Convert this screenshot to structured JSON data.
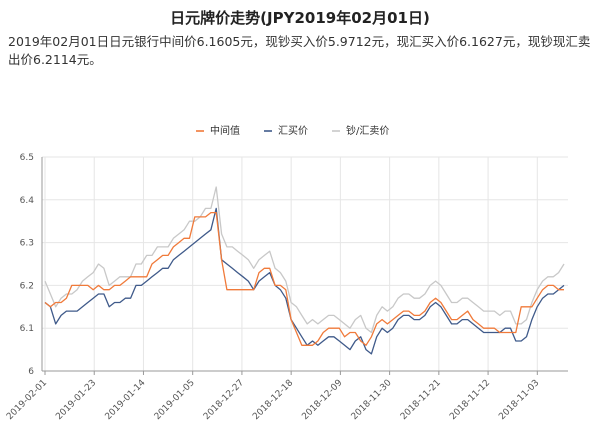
{
  "header": {
    "title": "日元牌价走势(JPY2019年02月01日)",
    "description": "2019年02月01日日元银行中间价6.1605元，现钞买入价5.9712元，现汇买入价6.1627元，现钞现汇卖出价6.2114元。"
  },
  "colors": {
    "mid": "#f07a3a",
    "buy": "#3f5a8a",
    "sell": "#c8c8c8",
    "grid": "#e6e6e6",
    "axis": "#999999"
  },
  "chart_data": {
    "type": "line",
    "title": "",
    "xlabel": "",
    "ylabel": "",
    "ylim": [
      6,
      6.5
    ],
    "yticks": [
      "6",
      "6.1",
      "6.2",
      "6.3",
      "6.4",
      "6.5"
    ],
    "xticks": [
      "2019-02-01",
      "2019-01-23",
      "2019-01-14",
      "2019-01-05",
      "2018-12-27",
      "2018-12-18",
      "2018-12-09",
      "2018-11-30",
      "2018-11-21",
      "2018-11-12",
      "2018-11-03"
    ],
    "grid": true,
    "legend_position": "top-center",
    "series": [
      {
        "name": "中间值",
        "values": [
          6.16,
          6.15,
          6.16,
          6.16,
          6.17,
          6.2,
          6.2,
          6.2,
          6.2,
          6.19,
          6.2,
          6.19,
          6.19,
          6.2,
          6.2,
          6.21,
          6.22,
          6.22,
          6.22,
          6.22,
          6.25,
          6.26,
          6.27,
          6.27,
          6.29,
          6.3,
          6.31,
          6.31,
          6.36,
          6.36,
          6.36,
          6.37,
          6.37,
          6.26,
          6.19,
          6.19,
          6.19,
          6.19,
          6.19,
          6.19,
          6.23,
          6.24,
          6.24,
          6.2,
          6.2,
          6.19,
          6.12,
          6.09,
          6.06,
          6.06,
          6.06,
          6.07,
          6.09,
          6.1,
          6.1,
          6.1,
          6.08,
          6.09,
          6.09,
          6.07,
          6.06,
          6.08,
          6.11,
          6.12,
          6.11,
          6.12,
          6.13,
          6.14,
          6.14,
          6.13,
          6.13,
          6.14,
          6.16,
          6.17,
          6.16,
          6.14,
          6.12,
          6.12,
          6.13,
          6.14,
          6.12,
          6.11,
          6.1,
          6.1,
          6.1,
          6.09,
          6.09,
          6.09,
          6.09,
          6.15,
          6.15,
          6.15,
          6.17,
          6.19,
          6.2,
          6.2,
          6.19,
          6.19
        ]
      },
      {
        "name": "汇买价",
        "values": [
          6.16,
          6.15,
          6.11,
          6.13,
          6.14,
          6.14,
          6.14,
          6.15,
          6.16,
          6.17,
          6.18,
          6.18,
          6.15,
          6.16,
          6.16,
          6.17,
          6.17,
          6.2,
          6.2,
          6.21,
          6.22,
          6.23,
          6.24,
          6.24,
          6.26,
          6.27,
          6.28,
          6.29,
          6.3,
          6.31,
          6.32,
          6.33,
          6.38,
          6.26,
          6.25,
          6.24,
          6.23,
          6.22,
          6.21,
          6.19,
          6.21,
          6.22,
          6.23,
          6.2,
          6.19,
          6.17,
          6.12,
          6.1,
          6.08,
          6.06,
          6.07,
          6.06,
          6.07,
          6.08,
          6.08,
          6.07,
          6.06,
          6.05,
          6.07,
          6.08,
          6.05,
          6.04,
          6.08,
          6.1,
          6.09,
          6.1,
          6.12,
          6.13,
          6.13,
          6.12,
          6.12,
          6.13,
          6.15,
          6.16,
          6.15,
          6.13,
          6.11,
          6.11,
          6.12,
          6.12,
          6.11,
          6.1,
          6.09,
          6.09,
          6.09,
          6.09,
          6.1,
          6.1,
          6.07,
          6.07,
          6.08,
          6.12,
          6.15,
          6.17,
          6.18,
          6.18,
          6.19,
          6.2
        ]
      },
      {
        "name": "钞/汇卖价",
        "values": [
          6.21,
          6.18,
          6.15,
          6.17,
          6.18,
          6.18,
          6.19,
          6.21,
          6.22,
          6.23,
          6.25,
          6.24,
          6.2,
          6.21,
          6.22,
          6.22,
          6.22,
          6.25,
          6.25,
          6.27,
          6.27,
          6.29,
          6.29,
          6.29,
          6.31,
          6.32,
          6.33,
          6.35,
          6.35,
          6.36,
          6.38,
          6.38,
          6.43,
          6.32,
          6.29,
          6.29,
          6.28,
          6.27,
          6.26,
          6.24,
          6.26,
          6.27,
          6.28,
          6.24,
          6.23,
          6.21,
          6.16,
          6.15,
          6.13,
          6.11,
          6.12,
          6.11,
          6.12,
          6.13,
          6.13,
          6.12,
          6.11,
          6.1,
          6.12,
          6.13,
          6.1,
          6.09,
          6.13,
          6.15,
          6.14,
          6.15,
          6.17,
          6.18,
          6.18,
          6.17,
          6.17,
          6.18,
          6.2,
          6.21,
          6.2,
          6.18,
          6.16,
          6.16,
          6.17,
          6.17,
          6.16,
          6.15,
          6.14,
          6.14,
          6.14,
          6.13,
          6.14,
          6.14,
          6.11,
          6.11,
          6.12,
          6.16,
          6.19,
          6.21,
          6.22,
          6.22,
          6.23,
          6.25
        ]
      }
    ]
  }
}
